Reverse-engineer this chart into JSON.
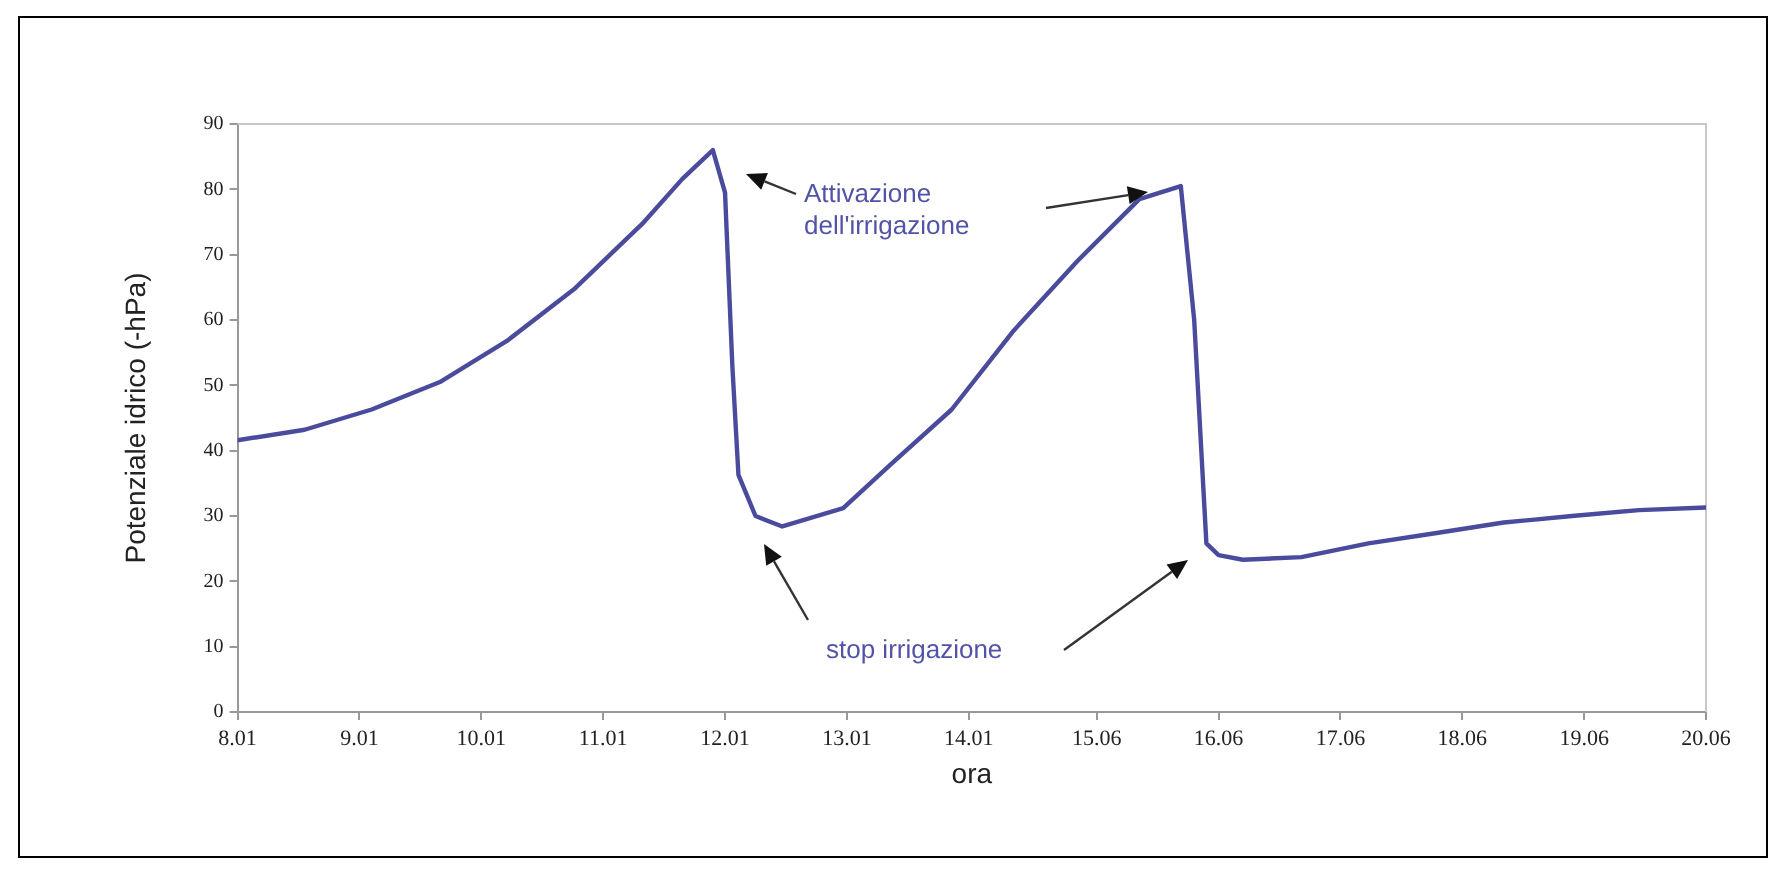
{
  "chart_data": {
    "type": "line",
    "xlabel": "ora",
    "ylabel": "Potenziale idrico (-hPa)",
    "x": [
      8.01,
      8.56,
      9.11,
      9.67,
      10.22,
      10.77,
      11.33,
      11.66,
      11.91,
      12.01,
      12.07,
      12.12,
      12.26,
      12.48,
      12.98,
      13.37,
      13.87,
      14.38,
      14.9,
      15.41,
      15.75,
      15.86,
      15.96,
      16.06,
      16.26,
      16.74,
      17.29,
      17.85,
      18.4,
      18.96,
      19.51,
      20.06
    ],
    "series": [
      {
        "color": "#4b4b9e",
        "values": [
          41.6,
          43.2,
          46.3,
          50.5,
          56.8,
          64.7,
          74.7,
          81.6,
          86,
          79.5,
          53,
          36.3,
          30,
          28.4,
          31.2,
          37.9,
          46.3,
          58.4,
          69,
          78.5,
          80.5,
          60,
          25.8,
          24,
          23.3,
          23.7,
          25.8,
          27.4,
          29,
          30,
          30.9,
          31.3
        ]
      }
    ],
    "xlim": [
      8.01,
      20.06
    ],
    "xticks": [
      8.01,
      9.01,
      10.01,
      11.01,
      12.01,
      13.01,
      14.01,
      15.06,
      16.06,
      17.06,
      18.06,
      19.06,
      20.06
    ],
    "ylim": [
      0,
      90
    ],
    "yticks": [
      0,
      10,
      20,
      30,
      40,
      50,
      60,
      70,
      80,
      90
    ],
    "grid": false,
    "legend": false,
    "marker": "none",
    "line_style": "solid",
    "annotations": [
      "Attivazione dell'irrigazione",
      "stop irrigazione"
    ]
  }
}
